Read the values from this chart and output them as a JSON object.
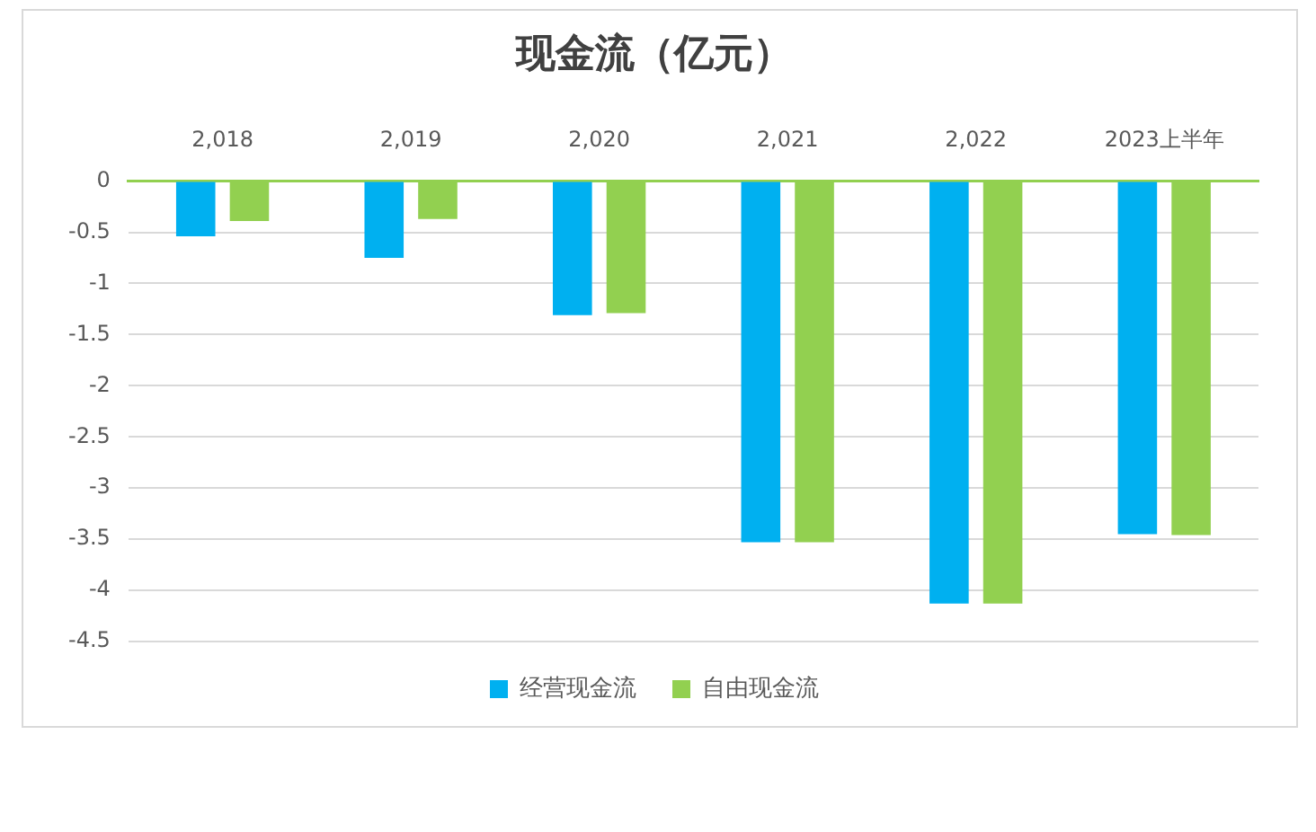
{
  "chart_data": {
    "type": "bar",
    "title": "现金流（亿元）",
    "categories": [
      "2,018",
      "2,019",
      "2,020",
      "2,021",
      "2,022",
      "2023上半年"
    ],
    "series": [
      {
        "name": "经营现金流",
        "color": "#00b0f0",
        "values": [
          -0.54,
          -0.75,
          -1.31,
          -3.53,
          -4.13,
          -3.45
        ]
      },
      {
        "name": "自由现金流",
        "color": "#92d050",
        "values": [
          -0.39,
          -0.37,
          -1.29,
          -3.53,
          -4.13,
          -3.46
        ]
      }
    ],
    "ylim": [
      -4.5,
      0
    ],
    "yticks": [
      0,
      -0.5,
      -1,
      -1.5,
      -2,
      -2.5,
      -3,
      -3.5,
      -4,
      -4.5
    ],
    "grid": "y",
    "legend": "bottom"
  }
}
